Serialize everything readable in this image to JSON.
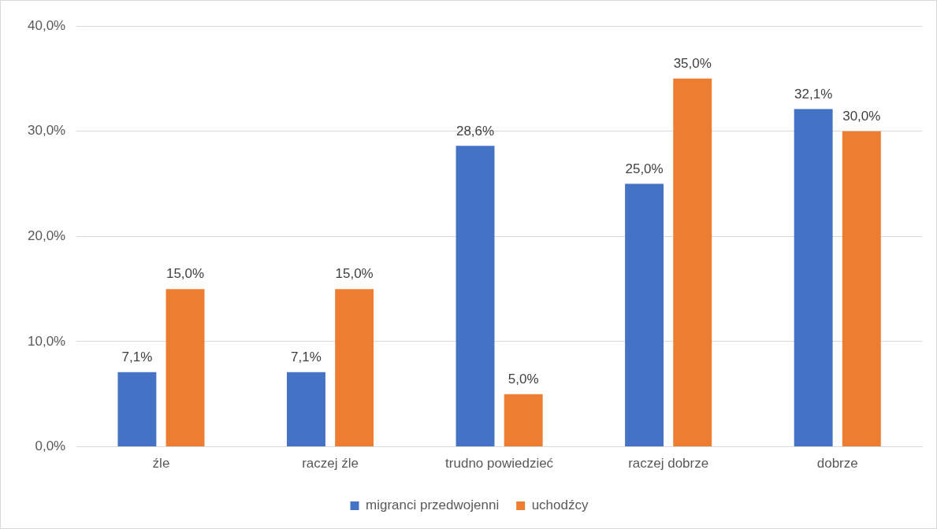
{
  "chart_data": {
    "type": "bar",
    "categories": [
      "źle",
      "raczej źle",
      "trudno powiedzieć",
      "raczej dobrze",
      "dobrze"
    ],
    "series": [
      {
        "name": "migranci przedwojenni",
        "color": "#4472c4",
        "values": [
          7.1,
          7.1,
          28.6,
          25.0,
          32.1
        ],
        "value_labels": [
          "7,1%",
          "7,1%",
          "28,6%",
          "25,0%",
          "32,1%"
        ]
      },
      {
        "name": "uchodźcy",
        "color": "#ed7d31",
        "values": [
          15.0,
          15.0,
          5.0,
          35.0,
          30.0
        ],
        "value_labels": [
          "15,0%",
          "15,0%",
          "5,0%",
          "35,0%",
          "30,0%"
        ]
      }
    ],
    "ylim": [
      0,
      40
    ],
    "yticks": [
      {
        "value": 0,
        "label": "0,0%"
      },
      {
        "value": 10,
        "label": "10,0%"
      },
      {
        "value": 20,
        "label": "20,0%"
      },
      {
        "value": 30,
        "label": "30,0%"
      },
      {
        "value": 40,
        "label": "40,0%"
      }
    ],
    "grid": "y",
    "legend": "bottom"
  }
}
